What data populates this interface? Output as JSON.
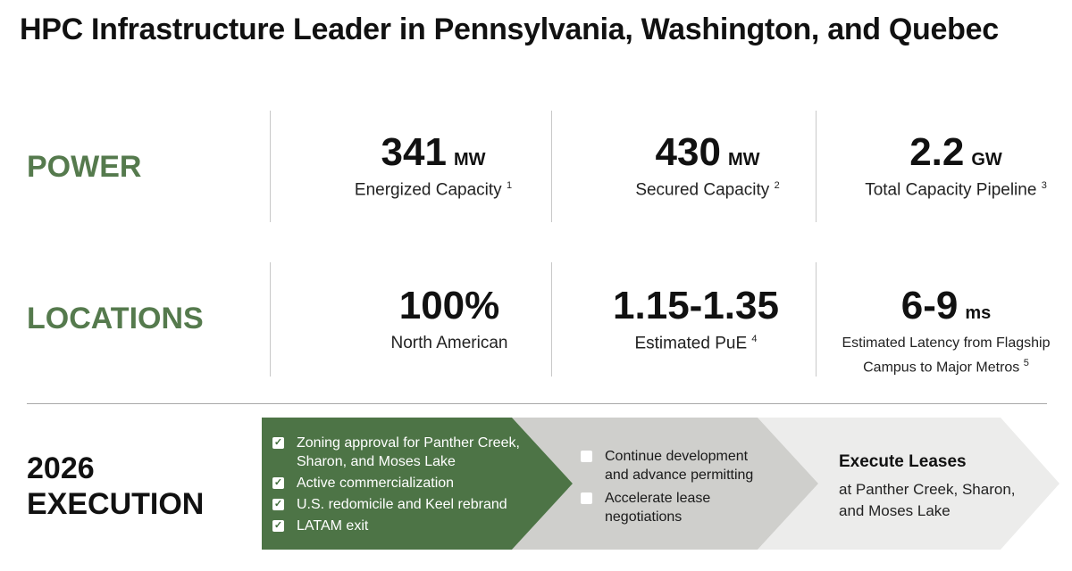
{
  "title": "HPC Infrastructure Leader in Pennsylvania, Washington, and Quebec",
  "rows": {
    "power": "POWER",
    "locations": "LOCATIONS",
    "execution_line1": "2026",
    "execution_line2": "EXECUTION"
  },
  "power": [
    {
      "value": "341",
      "unit": "MW",
      "label": "Energized Capacity",
      "note": "1"
    },
    {
      "value": "430",
      "unit": "MW",
      "label": "Secured Capacity",
      "note": "2"
    },
    {
      "value": "2.2",
      "unit": "GW",
      "label": "Total Capacity Pipeline",
      "note": "3"
    }
  ],
  "locations": [
    {
      "value": "100%",
      "unit": "",
      "label": "North American",
      "note": ""
    },
    {
      "value": "1.15-1.35",
      "unit": "",
      "label": "Estimated PuE",
      "note": "4"
    },
    {
      "value": "6-9",
      "unit": "ms",
      "label_line1": "Estimated Latency from Flagship",
      "label_line2": "Campus to Major Metros",
      "note": "5"
    }
  ],
  "execution": {
    "stage1": [
      {
        "text": "Zoning approval for Panther Creek, Sharon, and Moses Lake",
        "checked": true
      },
      {
        "text": "Active commercialization",
        "checked": true
      },
      {
        "text": "U.S. redomicile and Keel rebrand",
        "checked": true
      },
      {
        "text": "LATAM exit",
        "checked": true
      }
    ],
    "stage2": [
      {
        "text": "Continue development and advance permitting",
        "checked": false
      },
      {
        "text": "Accelerate lease negotiations",
        "checked": false
      }
    ],
    "stage3": {
      "title": "Execute Leases",
      "text": "at Panther Creek, Sharon, and Moses Lake"
    }
  },
  "colors": {
    "accent_green": "#557a4d",
    "chevron_green": "#3f6b3a",
    "chevron_grey": "#cfcfcc",
    "chevron_light": "#ececeb"
  }
}
